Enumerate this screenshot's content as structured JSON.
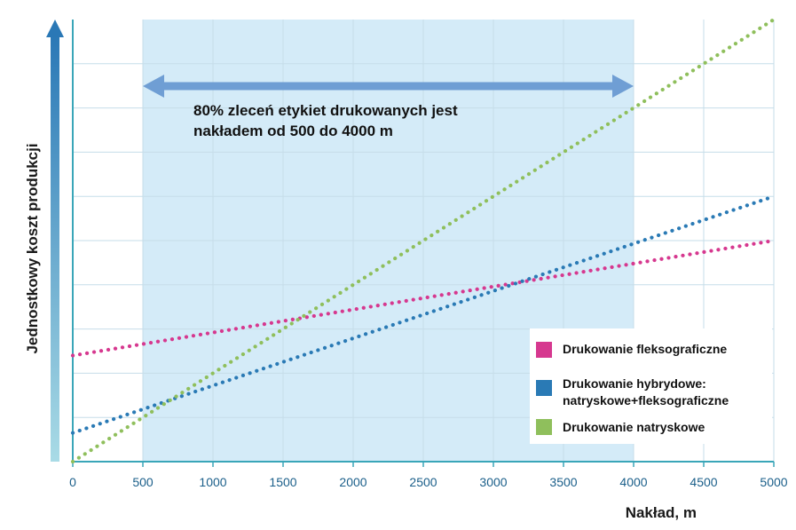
{
  "chart_data": {
    "type": "line",
    "title": "",
    "xlabel": "Nakład, m",
    "ylabel": "Jednostkowy koszt produkcji",
    "xlim": [
      0,
      5000
    ],
    "ylim": [
      0,
      10
    ],
    "x_ticks": [
      0,
      500,
      1000,
      1500,
      2000,
      2500,
      3000,
      3500,
      4000,
      4500,
      5000
    ],
    "x_tick_labels": [
      "0",
      "500",
      "1000",
      "1500",
      "2000",
      "2500",
      "3000",
      "3500",
      "4000",
      "4500",
      "5000"
    ],
    "grid": true,
    "legend_position": "bottom-right",
    "highlight_range": {
      "x": [
        500,
        4000
      ],
      "color": "#d4ebf8"
    },
    "annotation": {
      "lines": [
        "80% zleceń etykiet drukowanych jest",
        "nakładem od 500 do 4000 m"
      ],
      "arrow_range": [
        500,
        4000
      ]
    },
    "series": [
      {
        "name": "Drukowanie fleksograficzne",
        "color": "#d6388f",
        "x": [
          0,
          5000
        ],
        "y": [
          2.4,
          5.0
        ]
      },
      {
        "name": "Drukowanie hybrydowe: natryskowe+fleksograficzne",
        "name_lines": [
          "Drukowanie hybrydowe:",
          "natryskowe+fleksograficzne"
        ],
        "color": "#2a7ab5",
        "x": [
          0,
          5000
        ],
        "y": [
          0.65,
          6.0
        ]
      },
      {
        "name": "Drukowanie natryskowe",
        "color": "#8fbf5c",
        "x": [
          0,
          5000
        ],
        "y": [
          0.0,
          10.0
        ]
      }
    ]
  }
}
